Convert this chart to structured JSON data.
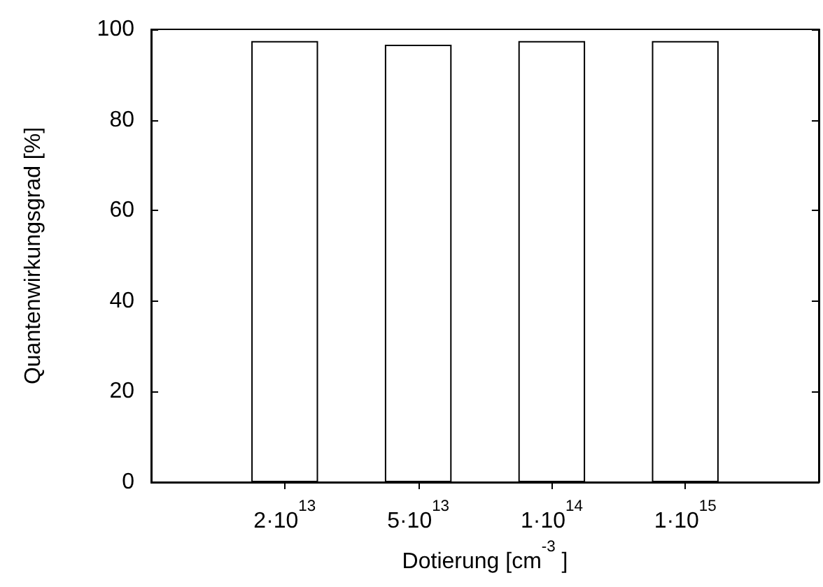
{
  "chart_data": {
    "type": "bar",
    "xlabel": "Dotierung [cm$^{-3}$ ]",
    "ylabel": "Quantenwirkungsgrad [%]",
    "categories": [
      null,
      "2·10$^{13}$",
      "5·10$^{13}$",
      "1·10$^{14}$",
      "1·10$^{15}$",
      null
    ],
    "values": [
      null,
      97.4,
      96.6,
      97.4,
      97.4,
      null
    ],
    "color": "#ffffff",
    "ylim": [
      0,
      100
    ],
    "yticks": [
      0,
      20,
      40,
      60,
      80,
      100
    ],
    "grid": false
  }
}
